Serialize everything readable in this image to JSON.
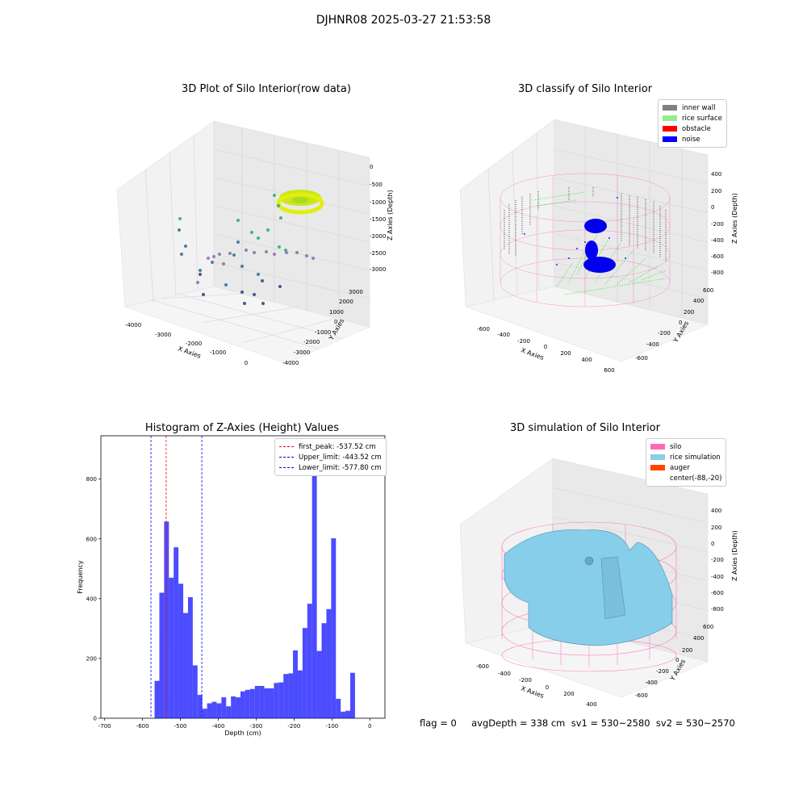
{
  "suptitle": "DJHNR08 2025-03-27 21:53:58",
  "panels": {
    "raw": {
      "title": "3D Plot of Silo Interior(row data)",
      "xlabel": "X Axies",
      "ylabel": "Y Axies",
      "zlabel": "Z Axies (Depth)",
      "xticks": [
        "-4000",
        "-3000",
        "-2000",
        "-1000",
        "0"
      ],
      "yticks": [
        "3000",
        "2000",
        "1000",
        "0",
        "-1000",
        "-2000",
        "-3000",
        "-4000"
      ],
      "zticks": [
        "0",
        "-500",
        "-1000",
        "-1500",
        "-2000",
        "-2500",
        "-3000"
      ]
    },
    "classify": {
      "title": "3D classify of Silo Interior",
      "xlabel": "X Axies",
      "ylabel": "Y Axies",
      "zlabel": "Z Axies (Depth)",
      "xticks": [
        "-600",
        "-400",
        "-200",
        "0",
        "200",
        "400",
        "600"
      ],
      "yticks": [
        "600",
        "400",
        "200",
        "0",
        "-200",
        "-400",
        "-600"
      ],
      "zticks": [
        "400",
        "200",
        "0",
        "-200",
        "-400",
        "-600",
        "-800"
      ],
      "legend": [
        {
          "label": "inner wall",
          "color": "#808080"
        },
        {
          "label": "rice surface",
          "color": "#90ee90"
        },
        {
          "label": "obstacle",
          "color": "#ff0000"
        },
        {
          "label": "noise",
          "color": "#0000ff"
        }
      ]
    },
    "simulation": {
      "title": "3D simulation of Silo Interior",
      "xlabel": "X Axies",
      "ylabel": "Y Axies",
      "zlabel": "Z Axies (Depth)",
      "xticks": [
        "-600",
        "-400",
        "-200",
        "0",
        "200",
        "400"
      ],
      "yticks": [
        "600",
        "400",
        "200",
        "0",
        "-200",
        "-400",
        "-600"
      ],
      "zticks": [
        "400",
        "200",
        "0",
        "-200",
        "-400",
        "-600",
        "-800"
      ],
      "legend": [
        {
          "label": "silo",
          "color": "#ff69b4"
        },
        {
          "label": "rice simulation",
          "color": "#87ceeb"
        },
        {
          "label": "auger",
          "color": "#ff4500"
        },
        {
          "label": "center(-88,-20)",
          "color": ""
        }
      ]
    }
  },
  "chart_data": [
    {
      "type": "bar",
      "title": "Histogram of Z-Axies (Height) Values",
      "xlabel": "Depth (cm)",
      "ylabel": "Frequency",
      "xlim": [
        -710,
        40
      ],
      "ylim": [
        0,
        945
      ],
      "xticks": [
        -700,
        -600,
        -500,
        -400,
        -300,
        -200,
        -100,
        0
      ],
      "yticks": [
        0,
        200,
        400,
        600,
        800
      ],
      "bar_color": "#0000ff",
      "bin_width": 12.6,
      "bin_start": -568.2,
      "values": [
        125,
        420,
        658,
        470,
        572,
        450,
        352,
        405,
        177,
        78,
        32,
        50,
        55,
        50,
        70,
        40,
        73,
        70,
        90,
        95,
        98,
        108,
        108,
        100,
        100,
        118,
        120,
        148,
        150,
        227,
        160,
        302,
        383,
        890,
        225,
        318,
        365,
        602,
        65,
        22,
        25,
        152
      ],
      "vlines": [
        {
          "label": "first_peak: -537.52 cm",
          "x": -537.52,
          "color": "#ff0000"
        },
        {
          "label": "Upper_limit: -443.52 cm",
          "x": -443.52,
          "color": "#0000ff"
        },
        {
          "label": "Lower_limit: -577.80 cm",
          "x": -577.8,
          "color": "#0000ff"
        }
      ],
      "legend": "top-right"
    }
  ],
  "bottom_info": "flag = 0     avgDepth = 338 cm  sv1 = 530~2580  sv2 = 530~2570"
}
